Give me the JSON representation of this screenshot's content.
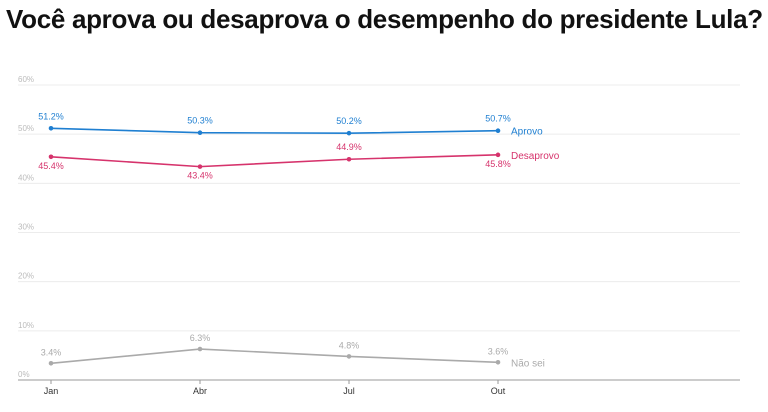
{
  "chart_data": {
    "type": "line",
    "title": "Você aprova ou desaprova o desempenho do presidente Lula?",
    "categories": [
      "Jan",
      "Abr",
      "Jul",
      "Out"
    ],
    "ylim": [
      0,
      60
    ],
    "yticks": [
      "0%",
      "10%",
      "20%",
      "30%",
      "40%",
      "50%",
      "60%"
    ],
    "grid": true,
    "series": [
      {
        "name": "Aprovo",
        "color": "#1f7fd1",
        "values": [
          51.2,
          50.3,
          50.2,
          50.7
        ],
        "labels": [
          "51.2%",
          "50.3%",
          "50.2%",
          "50.7%"
        ]
      },
      {
        "name": "Desaprovo",
        "color": "#d6336c",
        "values": [
          45.4,
          43.4,
          44.9,
          45.8
        ],
        "labels": [
          "45.4%",
          "43.4%",
          "44.9%",
          "45.8%"
        ]
      },
      {
        "name": "Não sei",
        "color": "#aaaaaa",
        "values": [
          3.4,
          6.3,
          4.8,
          3.6
        ],
        "labels": [
          "3.4%",
          "6.3%",
          "4.8%",
          "3.6%"
        ]
      }
    ]
  }
}
